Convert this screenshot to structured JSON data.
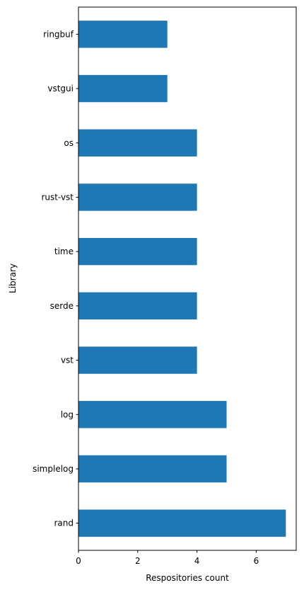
{
  "chart_data": {
    "type": "bar",
    "orientation": "horizontal",
    "categories": [
      "rand",
      "simplelog",
      "log",
      "vst",
      "serde",
      "time",
      "rust-vst",
      "os",
      "vstgui",
      "ringbuf"
    ],
    "values": [
      7,
      5,
      5,
      4,
      4,
      4,
      4,
      4,
      3,
      3
    ],
    "xlabel": "Respositories count",
    "ylabel": "Library",
    "xlim": [
      0,
      7.35
    ],
    "xticks": [
      "0",
      "2",
      "4",
      "6"
    ],
    "xtick_values": [
      0,
      2,
      4,
      6
    ],
    "grid": false,
    "legend": "none",
    "bar_color": "#1f77b4"
  }
}
